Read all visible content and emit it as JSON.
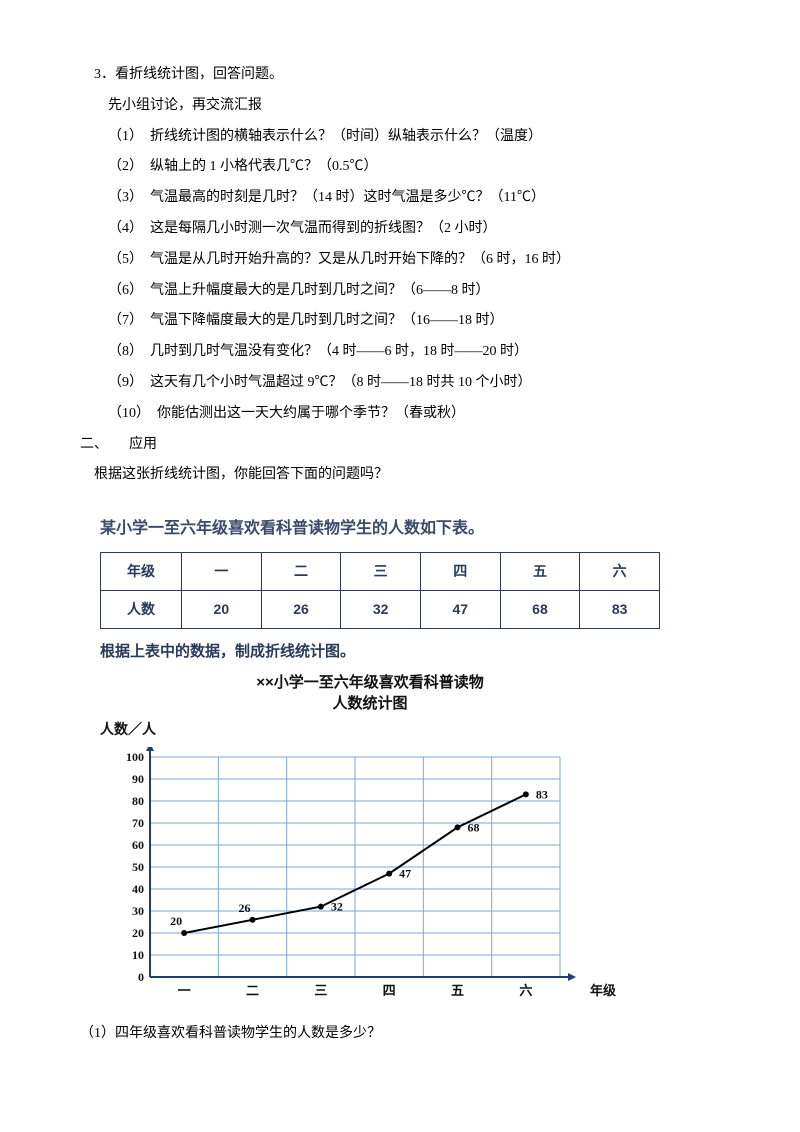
{
  "q3": {
    "title": "3．看折线统计图，回答问题。",
    "sub": "先小组讨论，再交流汇报",
    "items": [
      "（1）　折线统计图的横轴表示什么？（时间）纵轴表示什么？（温度）",
      "（2）　纵轴上的 1 小格代表几℃？（0.5℃）",
      "（3）　气温最高的时刻是几时？（14 时）这时气温是多少℃？（11℃）",
      "（4）　这是每隔几小时测一次气温而得到的折线图？（2 小时）",
      "（5）　气温是从几时开始升高的？又是从几时开始下降的？（6 时，16 时）",
      "（6）　气温上升幅度最大的是几时到几时之间？（6——8 时）",
      "（7）　气温下降幅度最大的是几时到几时之间？（16——18 时）",
      "（8）　几时到几时气温没有变化？（4 时——6 时，18 时——20 时）",
      "（9）　这天有几个小时气温超过 9℃？（8 时——18 时共 10 个小时）",
      "（10）　你能估测出这一天大约属于哪个季节？（春或秋）"
    ]
  },
  "sec2": {
    "heading": "二、　　应用",
    "intro": "根据这张折线统计图，你能回答下面的问题吗？"
  },
  "table": {
    "title": "某小学一至六年级喜欢看科普读物学生的人数如下表。",
    "head": [
      "年级",
      "一",
      "二",
      "三",
      "四",
      "五",
      "六"
    ],
    "row": [
      "人数",
      "20",
      "26",
      "32",
      "47",
      "68",
      "83"
    ],
    "note": "根据上表中的数据，制成折线统计图。"
  },
  "chart": {
    "type": "line",
    "title1": "××小学一至六年级喜欢看科普读物",
    "title2": "人数统计图",
    "ylabel": "人数／人",
    "xlabel": "年级",
    "categories": [
      "一",
      "二",
      "三",
      "四",
      "五",
      "六"
    ],
    "values": [
      20,
      26,
      32,
      47,
      68,
      83
    ],
    "ylim": [
      0,
      100
    ],
    "ytick_step": 10,
    "grid_color": "#7aa7d6",
    "axis_color": "#1e3f7a",
    "line_color": "#000000",
    "point_color": "#000000",
    "label_color": "#111111",
    "background": "#ffffff",
    "line_width": 2,
    "point_radius": 3,
    "font_size": 12
  },
  "final_q": "（1）四年级喜欢看科普读物学生的人数是多少？"
}
